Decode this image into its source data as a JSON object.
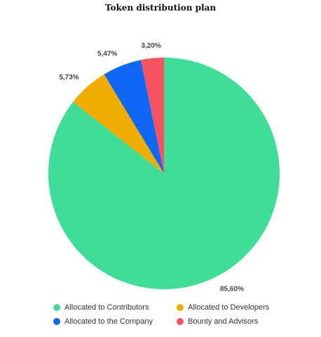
{
  "chart_data": {
    "type": "pie",
    "title": "Token distribution plan",
    "slices": [
      {
        "name": "Allocated to Contributors",
        "value": 85.6,
        "label": "85,60%",
        "color": "#3fdd95"
      },
      {
        "name": "Allocated to Developers",
        "value": 5.73,
        "label": "5,73%",
        "color": "#f0ad00"
      },
      {
        "name": "Allocated to the Company",
        "value": 5.47,
        "label": "5,47%",
        "color": "#0f67f5"
      },
      {
        "name": "Bounty and Advisors",
        "value": 3.2,
        "label": "3,20%",
        "color": "#f7525f"
      }
    ],
    "legend_order": [
      0,
      1,
      2,
      3
    ],
    "legend_position": "bottom"
  }
}
